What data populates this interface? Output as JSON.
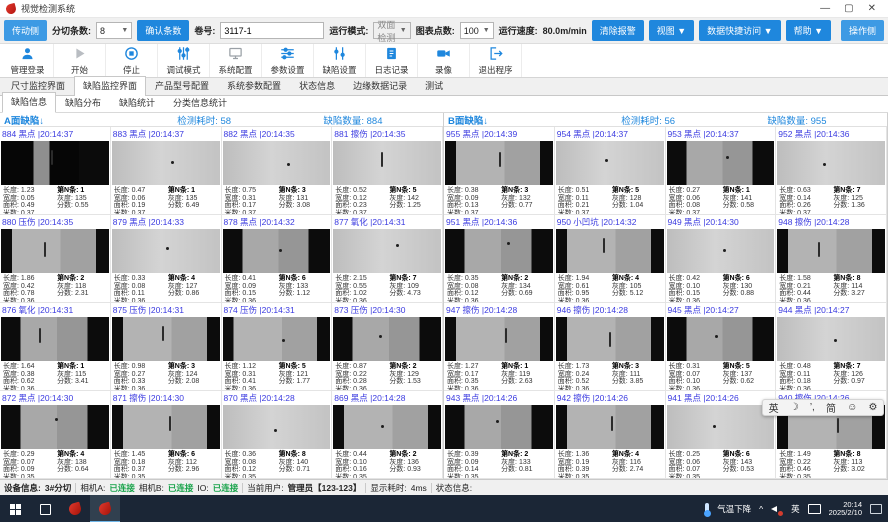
{
  "window": {
    "title": "视觉检测系统",
    "minimize": "—",
    "maximize": "▢",
    "close": "✕"
  },
  "toolbar": {
    "side_left": "传动侧",
    "slit_count_label": "分切条数:",
    "slit_count_value": "8",
    "confirm_button": "确认条数",
    "roll_label": "卷号:",
    "roll_value": "3117-1",
    "run_mode_label": "运行模式:",
    "run_mode_value": "双面检测",
    "chart_points_label": "图表点数:",
    "chart_points_value": "100",
    "speed_label": "运行速度:",
    "speed_value": "80.0m/min",
    "clear_alarm": "清除报警",
    "view_menu": "视图 ▼",
    "data_access_menu": "数据快捷访问 ▼",
    "help_menu": "帮助 ▼",
    "side_right": "操作侧"
  },
  "actions": [
    {
      "label": "管理登录",
      "icon": "user"
    },
    {
      "label": "开始",
      "icon": "play"
    },
    {
      "label": "停止",
      "icon": "stop"
    },
    {
      "label": "调试模式",
      "icon": "sliders-v"
    },
    {
      "label": "系统配置",
      "icon": "monitor"
    },
    {
      "label": "参数设置",
      "icon": "sliders-h"
    },
    {
      "label": "缺陷设置",
      "icon": "sliders-v2"
    },
    {
      "label": "日志记录",
      "icon": "journal"
    },
    {
      "label": "录像",
      "icon": "camera"
    },
    {
      "label": "退出程序",
      "icon": "exit"
    }
  ],
  "tabs": {
    "main": [
      "尺寸监控界面",
      "缺陷监控界面",
      "产品型号配置",
      "系统参数配置",
      "状态信息",
      "边缘数据记录",
      "测试"
    ],
    "active_main": 1,
    "sub": [
      "缺陷信息",
      "缺陷分布",
      "缺陷统计",
      "分类信息统计"
    ],
    "active_sub": 0
  },
  "card_labels": {
    "len": "长度:",
    "wid": "宽度:",
    "area": "面积:",
    "meter": "米数:",
    "strip": "第N条:",
    "gray": "灰度:",
    "score": "分数:"
  },
  "panels": [
    {
      "title": "A面缺陷↓",
      "elapsed_label": "检测耗时:",
      "elapsed": "58",
      "count_label": "缺陷数量:",
      "count": "884",
      "cards": [
        {
          "id": "884",
          "type": "黑点",
          "time": "20:14:37",
          "len": "1.23",
          "wid": "0.05",
          "area": "0.49",
          "meter": "0.37",
          "strip": "1",
          "gray": "135",
          "score": "0.55",
          "pat": 3,
          "mark": "line",
          "mx": 46,
          "my": 20
        },
        {
          "id": "883",
          "type": "黑点",
          "time": "20:14:37",
          "len": "0.47",
          "wid": "0.06",
          "area": "0.19",
          "meter": "0.37",
          "strip": "1",
          "gray": "135",
          "score": "6.49",
          "pat": 1,
          "mark": "dot",
          "mx": 55,
          "my": 45
        },
        {
          "id": "882",
          "type": "黑点",
          "time": "20:14:35",
          "len": "0.75",
          "wid": "0.31",
          "area": "0.17",
          "meter": "0.37",
          "strip": "3",
          "gray": "131",
          "score": "3.08",
          "pat": 1,
          "mark": "dot",
          "mx": 60,
          "my": 50
        },
        {
          "id": "881",
          "type": "擦伤",
          "time": "20:14:35",
          "len": "0.52",
          "wid": "0.12",
          "area": "0.23",
          "meter": "0.37",
          "strip": "5",
          "gray": "142",
          "score": "1.25",
          "pat": 1,
          "mark": "line",
          "mx": 44,
          "my": 25
        },
        {
          "id": "880",
          "type": "压伤",
          "time": "20:14:35",
          "len": "1.86",
          "wid": "0.42",
          "area": "0.78",
          "meter": "0.36",
          "strip": "2",
          "gray": "118",
          "score": "2.31",
          "pat": 2,
          "mark": "line",
          "mx": 40,
          "my": 30
        },
        {
          "id": "879",
          "type": "黑点",
          "time": "20:14:33",
          "len": "0.33",
          "wid": "0.08",
          "area": "0.11",
          "meter": "0.36",
          "strip": "4",
          "gray": "127",
          "score": "0.86",
          "pat": 1,
          "mark": "dot",
          "mx": 50,
          "my": 40
        },
        {
          "id": "878",
          "type": "黑点",
          "time": "20:14:32",
          "len": "0.41",
          "wid": "0.09",
          "area": "0.15",
          "meter": "0.36",
          "strip": "6",
          "gray": "133",
          "score": "1.12",
          "pat": 0,
          "mark": "dot",
          "mx": 52,
          "my": 45
        },
        {
          "id": "877",
          "type": "氧化",
          "time": "20:14:31",
          "len": "2.15",
          "wid": "0.55",
          "area": "1.02",
          "meter": "0.36",
          "strip": "7",
          "gray": "109",
          "score": "4.73",
          "pat": 1,
          "mark": "dot",
          "mx": 58,
          "my": 35
        },
        {
          "id": "876",
          "type": "氧化",
          "time": "20:14:31",
          "len": "1.64",
          "wid": "0.38",
          "area": "0.62",
          "meter": "0.36",
          "strip": "1",
          "gray": "115",
          "score": "3.41",
          "pat": 0,
          "mark": "line",
          "mx": 35,
          "my": 25
        },
        {
          "id": "875",
          "type": "压伤",
          "time": "20:14:31",
          "len": "0.98",
          "wid": "0.27",
          "area": "0.33",
          "meter": "0.36",
          "strip": "3",
          "gray": "124",
          "score": "2.08",
          "pat": 2,
          "mark": "line",
          "mx": 47,
          "my": 20
        },
        {
          "id": "874",
          "type": "压伤",
          "time": "20:14:31",
          "len": "1.12",
          "wid": "0.31",
          "area": "0.41",
          "meter": "0.36",
          "strip": "5",
          "gray": "121",
          "score": "1.77",
          "pat": 2,
          "mark": "dot",
          "mx": 55,
          "my": 50
        },
        {
          "id": "873",
          "type": "压伤",
          "time": "20:14:30",
          "len": "0.87",
          "wid": "0.22",
          "area": "0.28",
          "meter": "0.36",
          "strip": "2",
          "gray": "129",
          "score": "1.53",
          "pat": 0,
          "mark": "dot",
          "mx": 42,
          "my": 40
        },
        {
          "id": "872",
          "type": "黑点",
          "time": "20:14:30",
          "len": "0.29",
          "wid": "0.07",
          "area": "0.09",
          "meter": "0.35",
          "strip": "4",
          "gray": "138",
          "score": "0.64",
          "pat": 0,
          "mark": "dot",
          "mx": 50,
          "my": 30
        },
        {
          "id": "871",
          "type": "擦伤",
          "time": "20:14:30",
          "len": "1.45",
          "wid": "0.18",
          "area": "0.37",
          "meter": "0.35",
          "strip": "6",
          "gray": "112",
          "score": "2.96",
          "pat": 2,
          "mark": "line",
          "mx": 53,
          "my": 25
        },
        {
          "id": "870",
          "type": "黑点",
          "time": "20:14:28",
          "len": "0.36",
          "wid": "0.08",
          "area": "0.12",
          "meter": "0.35",
          "strip": "8",
          "gray": "140",
          "score": "0.71",
          "pat": 1,
          "mark": "dot",
          "mx": 48,
          "my": 55
        },
        {
          "id": "869",
          "type": "黑点",
          "time": "20:14:28",
          "len": "0.44",
          "wid": "0.10",
          "area": "0.16",
          "meter": "0.35",
          "strip": "2",
          "gray": "136",
          "score": "0.93",
          "pat": 2,
          "mark": "dot",
          "mx": 44,
          "my": 45
        }
      ]
    },
    {
      "title": "B面缺陷↓",
      "elapsed_label": "检测耗时:",
      "elapsed": "56",
      "count_label": "缺陷数量:",
      "count": "955",
      "cards": [
        {
          "id": "955",
          "type": "黑点",
          "time": "20:14:39",
          "len": "0.38",
          "wid": "0.09",
          "area": "0.13",
          "meter": "0.37",
          "strip": "3",
          "gray": "132",
          "score": "0.77",
          "pat": 2,
          "mark": "line",
          "mx": 50,
          "my": 25
        },
        {
          "id": "954",
          "type": "黑点",
          "time": "20:14:37",
          "len": "0.51",
          "wid": "0.11",
          "area": "0.21",
          "meter": "0.37",
          "strip": "5",
          "gray": "128",
          "score": "1.04",
          "pat": 1,
          "mark": "dot",
          "mx": 46,
          "my": 40
        },
        {
          "id": "953",
          "type": "黑点",
          "time": "20:14:37",
          "len": "0.27",
          "wid": "0.06",
          "area": "0.08",
          "meter": "0.37",
          "strip": "1",
          "gray": "141",
          "score": "0.58",
          "pat": 0,
          "mark": "dot",
          "mx": 55,
          "my": 35
        },
        {
          "id": "952",
          "type": "黑点",
          "time": "20:14:36",
          "len": "0.63",
          "wid": "0.14",
          "area": "0.26",
          "meter": "0.37",
          "strip": "7",
          "gray": "125",
          "score": "1.36",
          "pat": 1,
          "mark": "dot",
          "mx": 42,
          "my": 50
        },
        {
          "id": "951",
          "type": "黑点",
          "time": "20:14:36",
          "len": "0.35",
          "wid": "0.08",
          "area": "0.12",
          "meter": "0.36",
          "strip": "2",
          "gray": "134",
          "score": "0.69",
          "pat": 0,
          "mark": "dot",
          "mx": 58,
          "my": 30
        },
        {
          "id": "950",
          "type": "小凹坑",
          "time": "20:14:32",
          "len": "1.94",
          "wid": "0.61",
          "area": "0.95",
          "meter": "0.36",
          "strip": "4",
          "gray": "105",
          "score": "5.12",
          "pat": 2,
          "mark": "line",
          "mx": 44,
          "my": 20
        },
        {
          "id": "949",
          "type": "黑点",
          "time": "20:14:30",
          "len": "0.42",
          "wid": "0.10",
          "area": "0.15",
          "meter": "0.36",
          "strip": "6",
          "gray": "130",
          "score": "0.88",
          "pat": 1,
          "mark": "dot",
          "mx": 52,
          "my": 45
        },
        {
          "id": "948",
          "type": "擦伤",
          "time": "20:14:28",
          "len": "1.58",
          "wid": "0.21",
          "area": "0.44",
          "meter": "0.36",
          "strip": "8",
          "gray": "114",
          "score": "3.27",
          "pat": 2,
          "mark": "line",
          "mx": 38,
          "my": 30
        },
        {
          "id": "947",
          "type": "擦伤",
          "time": "20:14:28",
          "len": "1.27",
          "wid": "0.17",
          "area": "0.35",
          "meter": "0.36",
          "strip": "1",
          "gray": "119",
          "score": "2.63",
          "pat": 2,
          "mark": "line",
          "mx": 56,
          "my": 25
        },
        {
          "id": "946",
          "type": "擦伤",
          "time": "20:14:28",
          "len": "1.73",
          "wid": "0.24",
          "area": "0.52",
          "meter": "0.36",
          "strip": "3",
          "gray": "111",
          "score": "3.85",
          "pat": 2,
          "mark": "line",
          "mx": 49,
          "my": 35
        },
        {
          "id": "945",
          "type": "黑点",
          "time": "20:14:27",
          "len": "0.31",
          "wid": "0.07",
          "area": "0.10",
          "meter": "0.36",
          "strip": "5",
          "gray": "137",
          "score": "0.62",
          "pat": 0,
          "mark": "dot",
          "mx": 45,
          "my": 40
        },
        {
          "id": "944",
          "type": "黑点",
          "time": "20:14:27",
          "len": "0.48",
          "wid": "0.11",
          "area": "0.18",
          "meter": "0.36",
          "strip": "7",
          "gray": "126",
          "score": "0.97",
          "pat": 1,
          "mark": "dot",
          "mx": 53,
          "my": 50
        },
        {
          "id": "943",
          "type": "黑点",
          "time": "20:14:26",
          "len": "0.39",
          "wid": "0.09",
          "area": "0.14",
          "meter": "0.35",
          "strip": "2",
          "gray": "133",
          "score": "0.81",
          "pat": 0,
          "mark": "dot",
          "mx": 47,
          "my": 35
        },
        {
          "id": "942",
          "type": "擦伤",
          "time": "20:14:26",
          "len": "1.36",
          "wid": "0.19",
          "area": "0.39",
          "meter": "0.35",
          "strip": "4",
          "gray": "116",
          "score": "2.74",
          "pat": 2,
          "mark": "line",
          "mx": 51,
          "my": 25
        },
        {
          "id": "941",
          "type": "黑点",
          "time": "20:14:26",
          "len": "0.25",
          "wid": "0.06",
          "area": "0.07",
          "meter": "0.35",
          "strip": "6",
          "gray": "143",
          "score": "0.53",
          "pat": 1,
          "mark": "dot",
          "mx": 43,
          "my": 45
        },
        {
          "id": "940",
          "type": "擦伤",
          "time": "20:14:26",
          "len": "1.49",
          "wid": "0.22",
          "area": "0.46",
          "meter": "0.35",
          "strip": "8",
          "gray": "113",
          "score": "3.02",
          "pat": 2,
          "mark": "line",
          "mx": 55,
          "my": 30
        }
      ]
    }
  ],
  "status": {
    "device_label": "设备信息:",
    "device_value": "3#分切",
    "camera_a_label": "相机A:",
    "camera_a_value": "已连接",
    "camera_b_label": "相机B:",
    "camera_b_value": "已连接",
    "io_label": "IO:",
    "io_value": "已连接",
    "user_label": "当前用户:",
    "user_value": "管理员【123-123】",
    "display_time_label": "显示耗时:",
    "display_time_value": "4ms",
    "state_label": "状态信息:"
  },
  "taskbar": {
    "weather": "气温下降",
    "tray_caret": "^",
    "ime_lang": "英",
    "time": "20:14",
    "date": "2025/2/10"
  },
  "ime": {
    "items": [
      "英",
      "☽",
      "’,",
      "简",
      "☺",
      "⚙"
    ]
  }
}
